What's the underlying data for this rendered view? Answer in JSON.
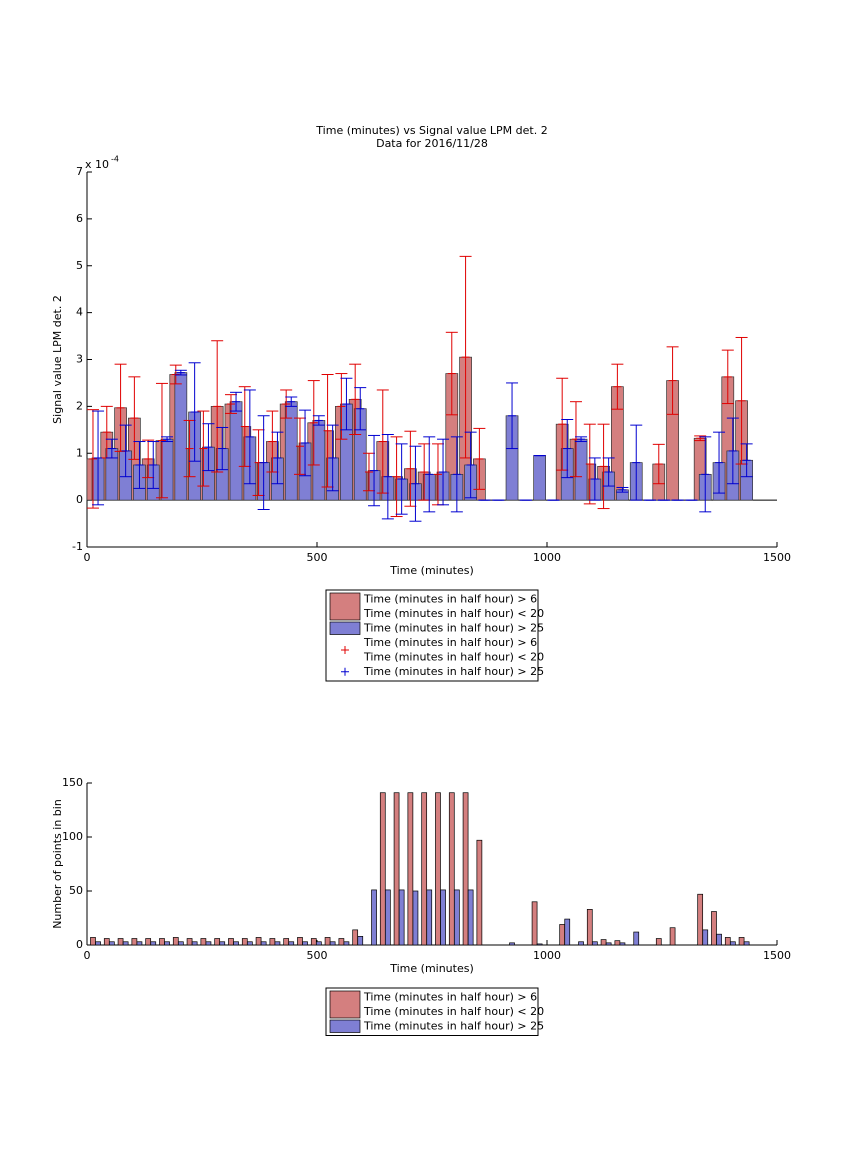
{
  "chart_data": [
    {
      "type": "bar_error",
      "title": [
        "Time (minutes) vs Signal value LPM det. 2",
        "Data for 2016/11/28"
      ],
      "exponent": [
        "x 10",
        "-4"
      ],
      "xlabel": "Time (minutes)",
      "ylabel": "Signal value LPM det. 2",
      "xlim": [
        0,
        1500
      ],
      "xticks": [
        0,
        500,
        1000,
        1500
      ],
      "ylim": [
        -1,
        7
      ],
      "yticks": [
        -1,
        0,
        1,
        2,
        3,
        4,
        5,
        6,
        7
      ],
      "error_legend": true,
      "series": [
        {
          "name": [
            "Time (minutes in half hour) > 6",
            "Time (minutes in half hour) < 20"
          ],
          "color": "#d47f7f",
          "error_color": "#e00000",
          "x": [
            13,
            43,
            73,
            103,
            133,
            163,
            193,
            223,
            253,
            283,
            313,
            343,
            373,
            403,
            433,
            463,
            493,
            523,
            553,
            583,
            613,
            643,
            673,
            703,
            733,
            763,
            793,
            823,
            853,
            883,
            913,
            943,
            973,
            1003,
            1033,
            1063,
            1093,
            1123,
            1153,
            1183,
            1213,
            1243,
            1273,
            1303,
            1333,
            1363,
            1393,
            1423
          ],
          "values": [
            0.88,
            1.45,
            1.97,
            1.75,
            0.88,
            1.27,
            2.68,
            1.1,
            1.1,
            2.0,
            2.05,
            1.57,
            0.8,
            1.25,
            2.05,
            1.15,
            1.65,
            1.48,
            2.0,
            2.15,
            0.6,
            1.25,
            0.5,
            0.67,
            0.6,
            0.55,
            2.7,
            3.05,
            0.88,
            null,
            null,
            null,
            null,
            null,
            1.62,
            1.3,
            0.77,
            0.72,
            2.42,
            null,
            null,
            0.77,
            2.55,
            null,
            1.32,
            null,
            2.63,
            2.12
          ],
          "errors": [
            1.05,
            0.55,
            0.93,
            0.88,
            0.4,
            1.22,
            0.2,
            0.6,
            0.8,
            1.4,
            0.2,
            0.85,
            0.7,
            0.65,
            0.3,
            0.6,
            0.9,
            1.2,
            0.7,
            0.75,
            0.4,
            1.1,
            0.85,
            0.8,
            0.6,
            0.65,
            0.88,
            2.15,
            0.65,
            null,
            null,
            null,
            null,
            null,
            0.98,
            0.8,
            0.85,
            0.9,
            0.48,
            null,
            null,
            0.42,
            0.72,
            null,
            0.05,
            null,
            0.57,
            1.35
          ]
        },
        {
          "name": [
            "Time (minutes in half hour) > 25"
          ],
          "color": "#7f7fd4",
          "error_color": "#0000d0",
          "x": [
            24,
            54,
            84,
            114,
            144,
            174,
            204,
            234,
            264,
            294,
            324,
            354,
            384,
            414,
            444,
            474,
            504,
            534,
            564,
            594,
            624,
            654,
            684,
            714,
            744,
            774,
            804,
            834,
            864,
            894,
            924,
            954,
            984,
            1014,
            1044,
            1074,
            1104,
            1134,
            1164,
            1194,
            1224,
            1254,
            1284,
            1314,
            1344,
            1374,
            1404,
            1434
          ],
          "values": [
            0.9,
            1.1,
            1.05,
            0.75,
            0.75,
            1.3,
            2.72,
            1.88,
            1.13,
            1.1,
            2.1,
            1.35,
            0.8,
            0.9,
            2.1,
            1.22,
            1.7,
            0.9,
            2.05,
            1.95,
            0.63,
            0.5,
            0.45,
            0.35,
            0.55,
            0.6,
            0.55,
            0.75,
            0,
            0,
            1.8,
            0,
            0.95,
            0,
            1.1,
            1.3,
            0.45,
            0.6,
            0.22,
            0.8,
            0,
            0,
            0,
            0,
            0.55,
            0.8,
            1.05,
            0.85
          ],
          "errors": [
            1.0,
            0.2,
            0.55,
            0.5,
            0.5,
            0.05,
            0.05,
            1.05,
            0.5,
            0.45,
            0.2,
            1.0,
            1.0,
            0.55,
            0.1,
            0.7,
            0.1,
            0.7,
            0.55,
            0.45,
            0.75,
            0.9,
            0.75,
            0.8,
            0.8,
            0.7,
            0.8,
            0.7,
            0,
            0,
            0.7,
            0,
            0,
            0,
            0.62,
            0.05,
            0.45,
            0.3,
            0.05,
            0.8,
            0,
            0,
            0,
            0,
            0.8,
            0.65,
            0.7,
            0.35
          ]
        }
      ]
    },
    {
      "type": "bar",
      "xlabel": "Time (minutes)",
      "ylabel": "Number of points in bin",
      "xlim": [
        0,
        1500
      ],
      "xticks": [
        0,
        500,
        1000,
        1500
      ],
      "ylim": [
        0,
        150
      ],
      "yticks": [
        0,
        50,
        100,
        150
      ],
      "series": [
        {
          "name": [
            "Time (minutes in half hour) > 6",
            "Time (minutes in half hour) < 20"
          ],
          "color": "#d47f7f",
          "x": [
            13,
            43,
            73,
            103,
            133,
            163,
            193,
            223,
            253,
            283,
            313,
            343,
            373,
            403,
            433,
            463,
            493,
            523,
            553,
            583,
            613,
            643,
            673,
            703,
            733,
            763,
            793,
            823,
            853,
            883,
            913,
            943,
            973,
            1003,
            1033,
            1063,
            1093,
            1123,
            1153,
            1183,
            1213,
            1243,
            1273,
            1303,
            1333,
            1363,
            1393,
            1423
          ],
          "values": [
            7,
            6,
            6,
            6,
            6,
            6,
            7,
            6,
            6,
            6,
            6,
            6,
            7,
            6,
            6,
            7,
            6,
            7,
            6,
            14,
            0,
            141,
            141,
            141,
            141,
            141,
            141,
            141,
            97,
            0,
            0,
            0,
            40,
            0,
            19,
            0,
            33,
            5,
            4,
            0,
            0,
            6,
            16,
            0,
            47,
            31,
            7,
            7
          ]
        },
        {
          "name": [
            "Time (minutes in half hour) > 25"
          ],
          "color": "#7f7fd4",
          "x": [
            24,
            54,
            84,
            114,
            144,
            174,
            204,
            234,
            264,
            294,
            324,
            354,
            384,
            414,
            444,
            474,
            504,
            534,
            564,
            594,
            624,
            654,
            684,
            714,
            744,
            774,
            804,
            834,
            864,
            894,
            924,
            954,
            984,
            1014,
            1044,
            1074,
            1104,
            1134,
            1164,
            1194,
            1224,
            1254,
            1284,
            1314,
            1344,
            1374,
            1404,
            1434
          ],
          "values": [
            3,
            3,
            3,
            3,
            3,
            3,
            3,
            3,
            3,
            3,
            3,
            3,
            3,
            3,
            3,
            3,
            3,
            3,
            3,
            8,
            51,
            51,
            51,
            50,
            51,
            51,
            51,
            51,
            0,
            0,
            2,
            0,
            1,
            0,
            24,
            3,
            3,
            2,
            2,
            12,
            0,
            0,
            0,
            0,
            14,
            10,
            3,
            3
          ]
        }
      ]
    }
  ]
}
